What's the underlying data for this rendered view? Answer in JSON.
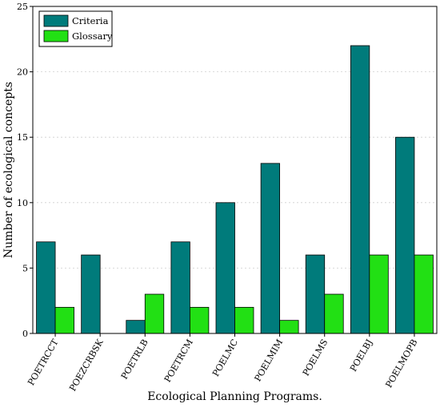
{
  "chart_data": {
    "type": "bar",
    "title": "",
    "xlabel": "Ecological Planning Programs.",
    "ylabel": "Number of ecological concepts",
    "categories": [
      "POETRCCT",
      "POEZCRBSK",
      "POETRLB",
      "POETRCM",
      "POELMC",
      "POELMIM",
      "POELMS",
      "POELBJ",
      "POELMOPB"
    ],
    "series": [
      {
        "name": "Criteria",
        "color": "#007b7b",
        "values": [
          7,
          6,
          1,
          7,
          10,
          13,
          6,
          22,
          15
        ]
      },
      {
        "name": "Glossary",
        "color": "#22e014",
        "values": [
          2,
          0,
          3,
          2,
          2,
          1,
          3,
          6,
          6
        ]
      }
    ],
    "ylim": [
      0,
      25
    ],
    "yticks": [
      0,
      5,
      10,
      15,
      20,
      25
    ],
    "grid": true,
    "legend_position": "top-left"
  }
}
